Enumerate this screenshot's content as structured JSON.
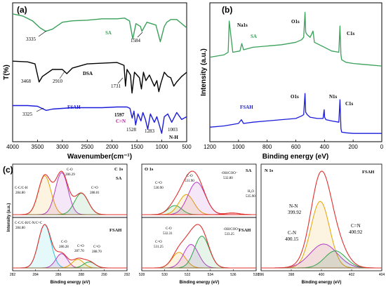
{
  "panel_labels": {
    "a": "(a)",
    "b": "(b)",
    "c": "(c)"
  },
  "colors": {
    "sa": "#3aa05a",
    "dsa": "#000000",
    "fsah": "#1c1cdc",
    "cn_label": "#b0209a",
    "c1": "#2ea64b",
    "c2": "#b33cc8",
    "c3": "#e5a100",
    "c4": "#e0302f",
    "c5": "#27c6d6"
  },
  "chart_data": [
    {
      "id": "ftir",
      "type": "line",
      "xlabel": "Wavenumber(cm⁻¹)",
      "ylabel": "T(%)",
      "xlim": [
        4000,
        500
      ],
      "x_reversed": true,
      "xticks": [
        "4000",
        "3500",
        "3000",
        "2500",
        "2000",
        "1500",
        "1000",
        "500"
      ],
      "series": [
        {
          "name": "SA",
          "color": "#3aa05a",
          "x": [
            4000,
            3800,
            3600,
            3450,
            3335,
            3200,
            3000,
            2800,
            2500,
            2200,
            1900,
            1750,
            1650,
            1584,
            1520,
            1430,
            1400,
            1300,
            1120,
            1090,
            1030,
            950,
            900,
            820,
            700,
            500
          ],
          "y": [
            0.92,
            0.905,
            0.87,
            0.82,
            0.795,
            0.81,
            0.86,
            0.87,
            0.875,
            0.885,
            0.885,
            0.89,
            0.87,
            0.74,
            0.85,
            0.83,
            0.795,
            0.86,
            0.84,
            0.8,
            0.72,
            0.83,
            0.86,
            0.88,
            0.88,
            0.82
          ]
        },
        {
          "name": "DSA",
          "color": "#000000",
          "x": [
            4000,
            3700,
            3550,
            3468,
            3400,
            3200,
            3000,
            2910,
            2800,
            2500,
            2200,
            1900,
            1760,
            1731,
            1700,
            1630,
            1600,
            1550,
            1450,
            1410,
            1370,
            1320,
            1250,
            1150,
            1100,
            1060,
            1020,
            950,
            880,
            820,
            760,
            700,
            600,
            500
          ],
          "y": [
            0.58,
            0.575,
            0.56,
            0.43,
            0.47,
            0.52,
            0.52,
            0.49,
            0.53,
            0.56,
            0.565,
            0.57,
            0.55,
            0.4,
            0.52,
            0.48,
            0.35,
            0.5,
            0.46,
            0.38,
            0.5,
            0.44,
            0.48,
            0.4,
            0.44,
            0.36,
            0.42,
            0.5,
            0.47,
            0.46,
            0.4,
            0.43,
            0.47,
            0.5
          ]
        },
        {
          "name": "FSAH",
          "color": "#1c1cdc",
          "x": [
            4000,
            3700,
            3500,
            3325,
            3200,
            3000,
            2800,
            2500,
            2200,
            1900,
            1700,
            1640,
            1597,
            1560,
            1528,
            1480,
            1420,
            1380,
            1330,
            1283,
            1230,
            1150,
            1100,
            1050,
            1003,
            950,
            880,
            800,
            700,
            600,
            500
          ],
          "y": [
            0.26,
            0.26,
            0.255,
            0.225,
            0.235,
            0.24,
            0.245,
            0.245,
            0.245,
            0.25,
            0.25,
            0.24,
            0.17,
            0.22,
            0.12,
            0.2,
            0.15,
            0.21,
            0.16,
            0.09,
            0.2,
            0.14,
            0.18,
            0.12,
            0.06,
            0.18,
            0.2,
            0.14,
            0.21,
            0.16,
            0.18
          ]
        }
      ],
      "annotations": [
        {
          "label": "SA"
        },
        {
          "label": "DSA"
        },
        {
          "label": "FSAH"
        },
        {
          "label": "3335"
        },
        {
          "label": "1584"
        },
        {
          "label": "3468"
        },
        {
          "label": "2910"
        },
        {
          "label": "1731"
        },
        {
          "label": "3325"
        },
        {
          "label": "1597"
        },
        {
          "label": "C=N"
        },
        {
          "label": "1528"
        },
        {
          "label": "1283"
        },
        {
          "label": "1003"
        },
        {
          "label": "N-H"
        }
      ]
    },
    {
      "id": "survey",
      "type": "line",
      "xlabel": "Binding energy (eV)",
      "ylabel": "Intensity (a.u.)",
      "xlim": [
        1200,
        0
      ],
      "x_reversed": true,
      "xticks": [
        "1200",
        "1000",
        "800",
        "600",
        "400",
        "200",
        "0"
      ],
      "series": [
        {
          "name": "SA",
          "color": "#3aa05a",
          "x": [
            1200,
            1150,
            1100,
            1072,
            1065,
            1040,
            990,
            977,
            965,
            900,
            800,
            700,
            600,
            560,
            545,
            536,
            531,
            520,
            500,
            480,
            470,
            400,
            350,
            300,
            292,
            285,
            280,
            250,
            200,
            100,
            0
          ],
          "y": [
            0.62,
            0.63,
            0.64,
            0.66,
            0.91,
            0.66,
            0.67,
            0.73,
            0.68,
            0.7,
            0.71,
            0.72,
            0.74,
            0.76,
            0.78,
            0.98,
            0.82,
            0.8,
            0.78,
            0.83,
            0.74,
            0.7,
            0.67,
            0.66,
            0.87,
            0.64,
            0.6,
            0.58,
            0.57,
            0.56,
            0.55
          ]
        },
        {
          "name": "FSAH",
          "color": "#1c1cdc",
          "x": [
            1200,
            1100,
            1000,
            980,
            965,
            900,
            800,
            700,
            600,
            560,
            545,
            536,
            531,
            520,
            500,
            450,
            410,
            402,
            399,
            390,
            350,
            300,
            292,
            285,
            280,
            250,
            200,
            100,
            0
          ],
          "y": [
            0.06,
            0.07,
            0.09,
            0.12,
            0.09,
            0.1,
            0.11,
            0.12,
            0.13,
            0.15,
            0.16,
            0.33,
            0.18,
            0.16,
            0.14,
            0.13,
            0.13,
            0.2,
            0.14,
            0.12,
            0.11,
            0.1,
            0.28,
            0.05,
            0.02,
            0.015,
            0.01,
            0.01,
            0.01
          ]
        }
      ],
      "annotations": [
        {
          "label": "Na1s"
        },
        {
          "label": "O1s"
        },
        {
          "label": "C1s"
        },
        {
          "label": "SA"
        },
        {
          "label": "O1s"
        },
        {
          "label": "N1s"
        },
        {
          "label": "C1s"
        },
        {
          "label": "FSAH"
        }
      ]
    },
    {
      "id": "c1s",
      "type": "line",
      "region": "C 1s",
      "xlabel": "Binding energy (eV)",
      "ylabel": "Intensity (a.u.)",
      "xlim": [
        282,
        292
      ],
      "xticks": [
        "282",
        "284",
        "286",
        "288",
        "290",
        "292"
      ],
      "sa_peaks": [
        {
          "label": "C-C/C-H",
          "be": 284.8,
          "amp": 1.0,
          "w": 0.55,
          "color": "#e5a100"
        },
        {
          "label": "C-O",
          "be": 286.29,
          "amp": 1.08,
          "w": 0.55,
          "color": "#b33cc8"
        },
        {
          "label": "C=O",
          "be": 288.01,
          "amp": 0.55,
          "w": 0.6,
          "color": "#2ea64b"
        }
      ],
      "fsah_peaks": [
        {
          "label": "C-C/C-H/C-N/C=C",
          "be": 284.8,
          "amp": 1.0,
          "w": 0.55,
          "color": "#27c6d6"
        },
        {
          "label": "C-O",
          "be": 286.28,
          "amp": 0.33,
          "w": 0.5,
          "color": "#b33cc8"
        },
        {
          "label": "C=O",
          "be": 287.7,
          "amp": 0.2,
          "w": 0.5,
          "color": "#e5a100"
        },
        {
          "label": "C=O",
          "be": 288.7,
          "amp": 0.14,
          "w": 0.5,
          "color": "#2ea64b"
        }
      ],
      "labels": {
        "region": "C 1s",
        "sa": "SA",
        "fsah": "FSAH"
      },
      "peak_text": {
        "sa_cc": "C-C/C-H",
        "sa_cc_v": "284.80",
        "sa_co": "C-O",
        "sa_co_v": "286.29",
        "sa_c2o": "C=O",
        "sa_c2o_v": "288.01",
        "f_cc": "C-C/C-H/C-N/C=C",
        "f_cc_v": "284.80",
        "f_co": "C-O",
        "f_co_v": "286.28",
        "f_c2o": "C=O",
        "f_c2o_v": "287.70",
        "f_c3o": "C=O",
        "f_c3o_v": "288.70"
      }
    },
    {
      "id": "o1s",
      "type": "line",
      "region": "O 1s",
      "xlabel": "Binding energy (eV)",
      "ylabel": "",
      "xlim": [
        528,
        538
      ],
      "xticks": [
        "528",
        "530",
        "532",
        "534",
        "536",
        "538"
      ],
      "sa_peaks": [
        {
          "label": "C=O",
          "be": 530.9,
          "amp": 0.28,
          "w": 0.6,
          "color": "#2ea64b"
        },
        {
          "label": "C-O",
          "be": 531.9,
          "amp": 0.62,
          "w": 0.65,
          "color": "#e5a100"
        },
        {
          "label": "-OH/COO⁻",
          "be": 532.8,
          "amp": 1.0,
          "w": 0.75,
          "color": "#b33cc8"
        },
        {
          "label": "H₂O",
          "be": 535.9,
          "amp": 0.05,
          "w": 0.6,
          "color": "#e0302f"
        }
      ],
      "fsah_peaks": [
        {
          "label": "C=O",
          "be": 531.25,
          "amp": 0.45,
          "w": 0.6,
          "color": "#e5a100"
        },
        {
          "label": "C-O",
          "be": 532.31,
          "amp": 0.68,
          "w": 0.65,
          "color": "#b33cc8"
        },
        {
          "label": "-OH/COO⁻",
          "be": 533.25,
          "amp": 0.92,
          "w": 0.65,
          "color": "#2ea64b"
        }
      ],
      "labels": {
        "region": "O 1s",
        "sa": "SA",
        "fsah": "FSAH"
      },
      "peak_text": {
        "sa_co": "C-O",
        "sa_co_v": "531.90",
        "sa_c2o": "C=O",
        "sa_c2o_v": "530.90",
        "sa_oh": "-OH/COO⁻",
        "sa_oh_v": "532.80",
        "sa_h2o": "H₂O",
        "sa_h2o_v": "535.90",
        "f_co": "C-O",
        "f_co_v": "532.31",
        "f_c2o": "C=O",
        "f_c2o_v": "531.25",
        "f_oh": "-OH/COO⁻",
        "f_oh_v": "533.25"
      }
    },
    {
      "id": "n1s",
      "type": "line",
      "region": "N 1s",
      "xlabel": "Binding energy (eV)",
      "ylabel": "",
      "xlim": [
        396,
        404
      ],
      "xticks": [
        "396",
        "398",
        "400",
        "402",
        "404"
      ],
      "fsah_peaks": [
        {
          "label": "N-N",
          "be": 399.92,
          "amp": 0.78,
          "w": 0.62,
          "color": "#e5a100"
        },
        {
          "label": "C-N",
          "be": 400.15,
          "amp": 0.28,
          "w": 0.9,
          "color": "#b33cc8"
        },
        {
          "label": "C=N",
          "be": 400.92,
          "amp": 0.2,
          "w": 0.7,
          "color": "#2ea64b"
        }
      ],
      "labels": {
        "region": "N 1s",
        "fsah": "FSAH"
      },
      "peak_text": {
        "nn": "N-N",
        "nn_v": "399.92",
        "cn": "C-N",
        "cn_v": "400.15",
        "c2n": "C=N",
        "c2n_v": "400.92"
      }
    }
  ]
}
